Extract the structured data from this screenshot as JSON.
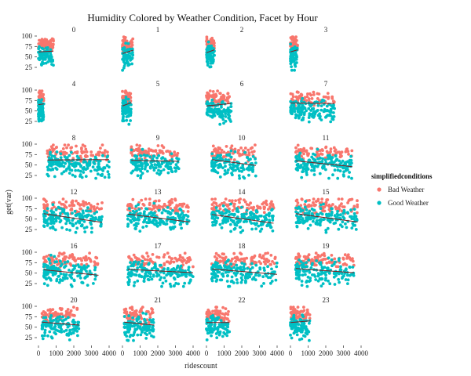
{
  "chart_data": {
    "type": "scatter",
    "title": "Humidity Colored by Weather Condition, Facet by Hour",
    "xlabel": "ridescount",
    "ylabel": "get(var)",
    "xlim": [
      0,
      4000
    ],
    "ylim": [
      10,
      100
    ],
    "x_ticks": [
      0,
      1000,
      2000,
      3000,
      4000
    ],
    "x_tick_labels": [
      "0",
      "1000",
      "2000",
      "3000",
      "4000"
    ],
    "y_ticks": [
      25,
      50,
      75,
      100
    ],
    "y_tick_labels": [
      "25",
      "50",
      "75",
      "100"
    ],
    "grid": false,
    "legend": {
      "title": "simplifiedconditions",
      "placement": "right",
      "entries": [
        {
          "name": "Bad Weather",
          "color": "#F8766D"
        },
        {
          "name": "Good Weather",
          "color": "#00BFC4"
        }
      ]
    },
    "trend_color": "#7a1f1f",
    "facets": [
      {
        "label": "0",
        "xr": [
          0,
          850
        ],
        "bad_frac": 0.45,
        "trend": [
          [
            0,
            62
          ],
          [
            850,
            64
          ]
        ]
      },
      {
        "label": "1",
        "xr": [
          0,
          600
        ],
        "bad_frac": 0.4,
        "trend": [
          [
            0,
            58
          ],
          [
            600,
            66
          ]
        ]
      },
      {
        "label": "2",
        "xr": [
          0,
          450
        ],
        "bad_frac": 0.4,
        "trend": [
          [
            0,
            60
          ],
          [
            450,
            67
          ]
        ]
      },
      {
        "label": "3",
        "xr": [
          0,
          400
        ],
        "bad_frac": 0.4,
        "trend": [
          [
            0,
            62
          ],
          [
            400,
            67
          ]
        ]
      },
      {
        "label": "4",
        "xr": [
          0,
          300
        ],
        "bad_frac": 0.4,
        "trend": [
          [
            0,
            65
          ],
          [
            300,
            67
          ]
        ]
      },
      {
        "label": "5",
        "xr": [
          0,
          500
        ],
        "bad_frac": 0.4,
        "trend": [
          [
            0,
            62
          ],
          [
            500,
            70
          ]
        ]
      },
      {
        "label": "6",
        "xr": [
          0,
          1400
        ],
        "bad_frac": 0.35,
        "trend": [
          [
            0,
            62
          ],
          [
            1400,
            68
          ]
        ]
      },
      {
        "label": "7",
        "xr": [
          0,
          2500
        ],
        "bad_frac": 0.35,
        "trend": [
          [
            0,
            69
          ],
          [
            2500,
            68
          ]
        ]
      },
      {
        "label": "8",
        "xr": [
          500,
          4000
        ],
        "bad_frac": 0.35,
        "trend": [
          [
            500,
            62
          ],
          [
            4000,
            63
          ]
        ]
      },
      {
        "label": "9",
        "xr": [
          500,
          3200
        ],
        "bad_frac": 0.35,
        "trend": [
          [
            500,
            61
          ],
          [
            3200,
            59
          ]
        ]
      },
      {
        "label": "10",
        "xr": [
          300,
          2800
        ],
        "bad_frac": 0.35,
        "trend": [
          [
            300,
            63
          ],
          [
            2800,
            49
          ]
        ]
      },
      {
        "label": "11",
        "xr": [
          300,
          3500
        ],
        "bad_frac": 0.35,
        "trend": [
          [
            300,
            60
          ],
          [
            3500,
            46
          ]
        ]
      },
      {
        "label": "12",
        "xr": [
          300,
          3600
        ],
        "bad_frac": 0.35,
        "trend": [
          [
            300,
            63
          ],
          [
            3600,
            42
          ]
        ]
      },
      {
        "label": "13",
        "xr": [
          300,
          3800
        ],
        "bad_frac": 0.35,
        "trend": [
          [
            300,
            62
          ],
          [
            3800,
            43
          ]
        ]
      },
      {
        "label": "14",
        "xr": [
          300,
          3800
        ],
        "bad_frac": 0.35,
        "trend": [
          [
            300,
            61
          ],
          [
            3800,
            40
          ]
        ]
      },
      {
        "label": "15",
        "xr": [
          300,
          3800
        ],
        "bad_frac": 0.35,
        "trend": [
          [
            300,
            63
          ],
          [
            3800,
            43
          ]
        ]
      },
      {
        "label": "16",
        "xr": [
          300,
          3400
        ],
        "bad_frac": 0.35,
        "trend": [
          [
            300,
            58
          ],
          [
            3400,
            45
          ]
        ]
      },
      {
        "label": "17",
        "xr": [
          300,
          4000
        ],
        "bad_frac": 0.35,
        "trend": [
          [
            300,
            59
          ],
          [
            4000,
            51
          ]
        ]
      },
      {
        "label": "18",
        "xr": [
          300,
          4000
        ],
        "bad_frac": 0.35,
        "trend": [
          [
            300,
            60
          ],
          [
            4000,
            47
          ]
        ]
      },
      {
        "label": "19",
        "xr": [
          300,
          3600
        ],
        "bad_frac": 0.35,
        "trend": [
          [
            300,
            61
          ],
          [
            3600,
            51
          ]
        ]
      },
      {
        "label": "20",
        "xr": [
          200,
          2300
        ],
        "bad_frac": 0.4,
        "trend": [
          [
            200,
            62
          ],
          [
            2300,
            55
          ]
        ]
      },
      {
        "label": "21",
        "xr": [
          100,
          1800
        ],
        "bad_frac": 0.4,
        "trend": [
          [
            100,
            62
          ],
          [
            1800,
            55
          ]
        ]
      },
      {
        "label": "22",
        "xr": [
          0,
          1300
        ],
        "bad_frac": 0.4,
        "trend": [
          [
            0,
            61
          ],
          [
            1300,
            61
          ]
        ]
      },
      {
        "label": "23",
        "xr": [
          0,
          1100
        ],
        "bad_frac": 0.4,
        "trend": [
          [
            0,
            61
          ],
          [
            1100,
            65
          ]
        ]
      }
    ]
  }
}
